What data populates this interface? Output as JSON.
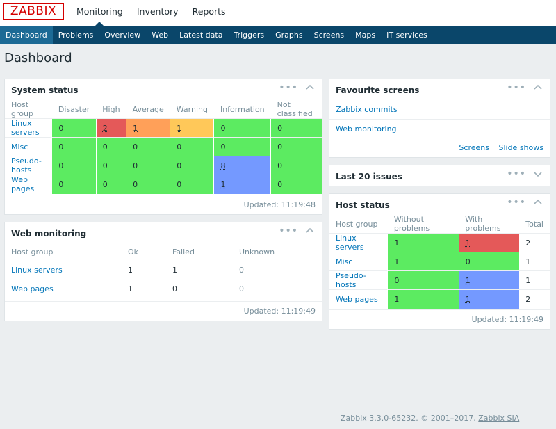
{
  "app": {
    "logo": "ZABBIX"
  },
  "top_menu": [
    {
      "label": "Monitoring",
      "active": true
    },
    {
      "label": "Inventory"
    },
    {
      "label": "Reports"
    }
  ],
  "sub_menu": [
    {
      "label": "Dashboard",
      "active": true
    },
    {
      "label": "Problems"
    },
    {
      "label": "Overview"
    },
    {
      "label": "Web"
    },
    {
      "label": "Latest data"
    },
    {
      "label": "Triggers"
    },
    {
      "label": "Graphs"
    },
    {
      "label": "Screens"
    },
    {
      "label": "Maps"
    },
    {
      "label": "IT services"
    }
  ],
  "page_title": "Dashboard",
  "system_status": {
    "title": "System status",
    "headers": [
      "Host group",
      "Disaster",
      "High",
      "Average",
      "Warning",
      "Information",
      "Not classified"
    ],
    "rows": [
      {
        "group": "Linux servers",
        "disaster": "0",
        "high": "2",
        "average": "1",
        "warning": "1",
        "information": "0",
        "not_classified": "0"
      },
      {
        "group": "Misc",
        "disaster": "0",
        "high": "0",
        "average": "0",
        "warning": "0",
        "information": "0",
        "not_classified": "0"
      },
      {
        "group": "Pseudo-hosts",
        "disaster": "0",
        "high": "0",
        "average": "0",
        "warning": "0",
        "information": "8",
        "not_classified": "0"
      },
      {
        "group": "Web pages",
        "disaster": "0",
        "high": "0",
        "average": "0",
        "warning": "0",
        "information": "1",
        "not_classified": "0"
      }
    ],
    "updated": "Updated: 11:19:48"
  },
  "web_monitoring": {
    "title": "Web monitoring",
    "headers": [
      "Host group",
      "Ok",
      "Failed",
      "Unknown"
    ],
    "rows": [
      {
        "group": "Linux servers",
        "ok": "1",
        "failed": "1",
        "unknown": "0"
      },
      {
        "group": "Web pages",
        "ok": "1",
        "failed": "0",
        "unknown": "0"
      }
    ],
    "updated": "Updated: 11:19:49"
  },
  "favourite_screens": {
    "title": "Favourite screens",
    "items": [
      "Zabbix commits",
      "Web monitoring"
    ],
    "links": [
      "Screens",
      "Slide shows"
    ]
  },
  "last_issues": {
    "title": "Last 20 issues"
  },
  "host_status": {
    "title": "Host status",
    "headers": [
      "Host group",
      "Without problems",
      "With problems",
      "Total"
    ],
    "rows": [
      {
        "group": "Linux servers",
        "without": "1",
        "with": "1",
        "total": "2"
      },
      {
        "group": "Misc",
        "without": "1",
        "with": "0",
        "total": "1"
      },
      {
        "group": "Pseudo-hosts",
        "without": "0",
        "with": "1",
        "total": "1"
      },
      {
        "group": "Web pages",
        "without": "1",
        "with": "1",
        "total": "2"
      }
    ],
    "updated": "Updated: 11:19:49"
  },
  "footer": {
    "text": "Zabbix 3.3.0-65232. © 2001–2017,",
    "link": "Zabbix SIA"
  },
  "colors": {
    "nav": "#0a466a",
    "green": "#5ceb61",
    "red": "#e45959",
    "orange": "#ffa059",
    "yellow": "#ffc859",
    "blue": "#7499ff"
  }
}
